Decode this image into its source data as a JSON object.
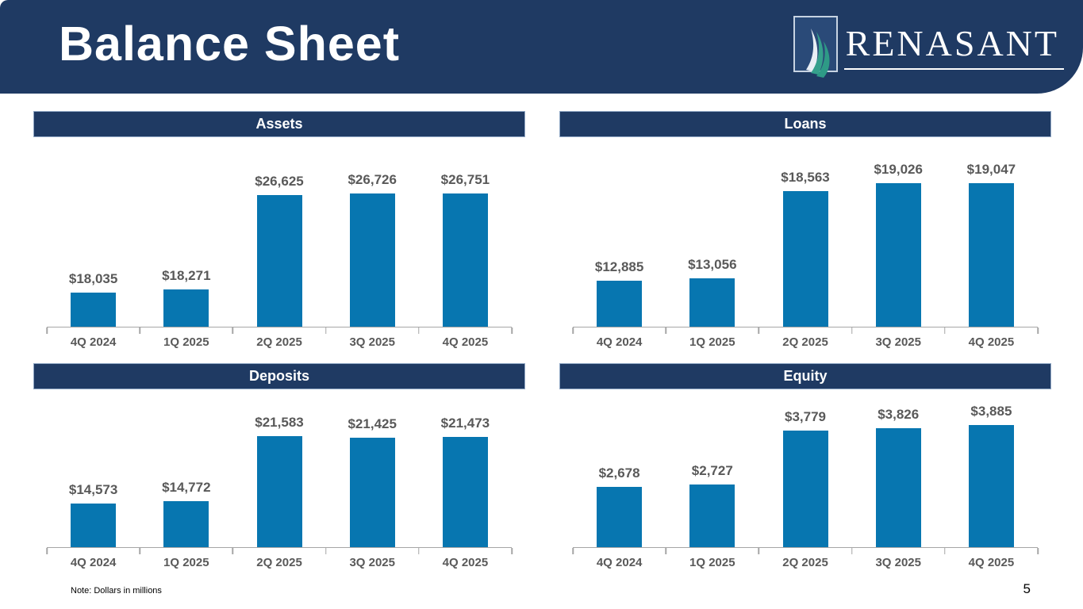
{
  "slide": {
    "title": "Balance Sheet",
    "logo_text": "RENASANT",
    "note": "Note: Dollars in millions",
    "page_number": "5"
  },
  "colors": {
    "navy": "#1F3A63",
    "bar_blue": "#0776B0",
    "label_gray": "#595959",
    "axis_gray": "#A6A6A6",
    "logo_teal": "#35A08C",
    "logo_white": "#E9EFF5"
  },
  "chart_data": [
    {
      "type": "bar",
      "title": "Assets",
      "categories": [
        "4Q 2024",
        "1Q 2025",
        "2Q 2025",
        "3Q 2025",
        "4Q 2025"
      ],
      "values": [
        18035,
        18271,
        26625,
        26726,
        26751
      ],
      "value_labels": [
        "$18,035",
        "$18,271",
        "$26,625",
        "$26,726",
        "$26,751"
      ],
      "xlabel": "",
      "ylabel": "",
      "ylim": [
        15000,
        29000
      ],
      "grid": false,
      "legend": false,
      "units": "dollars in millions"
    },
    {
      "type": "bar",
      "title": "Loans",
      "categories": [
        "4Q 2024",
        "1Q 2025",
        "2Q 2025",
        "3Q 2025",
        "4Q 2025"
      ],
      "values": [
        12885,
        13056,
        18563,
        19026,
        19047
      ],
      "value_labels": [
        "$12,885",
        "$13,056",
        "$18,563",
        "$19,026",
        "$19,047"
      ],
      "xlabel": "",
      "ylabel": "",
      "ylim": [
        10000,
        20000
      ],
      "grid": false,
      "legend": false,
      "units": "dollars in millions"
    },
    {
      "type": "bar",
      "title": "Deposits",
      "categories": [
        "4Q 2024",
        "1Q 2025",
        "2Q 2025",
        "3Q 2025",
        "4Q 2025"
      ],
      "values": [
        14573,
        14772,
        21583,
        21425,
        21473
      ],
      "value_labels": [
        "$14,573",
        "$14,772",
        "$21,583",
        "$21,425",
        "$21,473"
      ],
      "xlabel": "",
      "ylabel": "",
      "ylim": [
        10000,
        26500
      ],
      "grid": false,
      "legend": false,
      "units": "dollars in millions"
    },
    {
      "type": "bar",
      "title": "Equity",
      "categories": [
        "4Q 2024",
        "1Q 2025",
        "2Q 2025",
        "3Q 2025",
        "4Q 2025"
      ],
      "values": [
        2678,
        2727,
        3779,
        3826,
        3885
      ],
      "value_labels": [
        "$2,678",
        "$2,727",
        "$3,779",
        "$3,826",
        "$3,885"
      ],
      "xlabel": "",
      "ylabel": "",
      "ylim": [
        1500,
        4600
      ],
      "grid": false,
      "legend": false,
      "units": "dollars in millions"
    }
  ]
}
